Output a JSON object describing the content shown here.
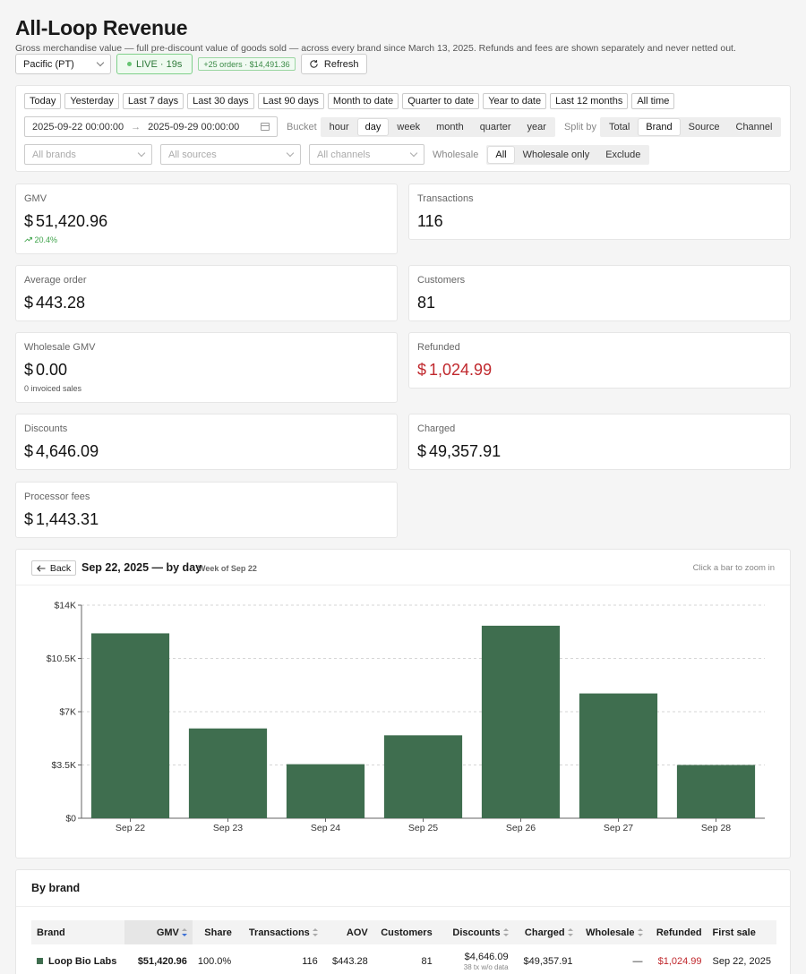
{
  "header": {
    "title": "All-Loop Revenue",
    "subtitle": "Gross merchandise value — full pre-discount value of goods sold — across every brand since March 13, 2025. Refunds and fees are shown separately and never netted out."
  },
  "toolbar": {
    "timezone": "Pacific (PT)",
    "live_label": "LIVE · 19s",
    "orders_badge": "+25 orders · $14,491.36",
    "refresh_label": "Refresh"
  },
  "filters": {
    "presets": [
      "Today",
      "Yesterday",
      "Last 7 days",
      "Last 30 days",
      "Last 90 days",
      "Month to date",
      "Quarter to date",
      "Year to date",
      "Last 12 months",
      "All time"
    ],
    "date_from": "2025-09-22 00:00:00",
    "date_arrow": "→",
    "date_to": "2025-09-29 00:00:00",
    "bucket_label": "Bucket",
    "buckets": [
      "hour",
      "day",
      "week",
      "month",
      "quarter",
      "year"
    ],
    "bucket_selected": "day",
    "split_label": "Split by",
    "splits": [
      "Total",
      "Brand",
      "Source",
      "Channel"
    ],
    "split_selected": "Brand",
    "brands_placeholder": "All brands",
    "sources_placeholder": "All sources",
    "channels_placeholder": "All channels",
    "wholesale_label": "Wholesale",
    "wholesale_options": [
      "All",
      "Wholesale only",
      "Exclude"
    ],
    "wholesale_selected": "All"
  },
  "stats": {
    "gmv": {
      "label": "GMV",
      "currency": "$",
      "value": "51,420.96",
      "delta": "20.4%"
    },
    "transactions": {
      "label": "Transactions",
      "value": "116"
    },
    "aov": {
      "label": "Average order",
      "currency": "$",
      "value": "443.28"
    },
    "customers": {
      "label": "Customers",
      "value": "81"
    },
    "wholesale": {
      "label": "Wholesale GMV",
      "currency": "$",
      "value": "0.00",
      "sub": "0 invoiced sales"
    },
    "refunded": {
      "label": "Refunded",
      "currency": "$",
      "value": "1,024.99"
    },
    "discounts": {
      "label": "Discounts",
      "currency": "$",
      "value": "4,646.09"
    },
    "charged": {
      "label": "Charged",
      "currency": "$",
      "value": "49,357.91"
    },
    "fees": {
      "label": "Processor fees",
      "currency": "$",
      "value": "1,443.31"
    }
  },
  "chart_panel": {
    "back_label": "Back",
    "title": "Sep 22, 2025 — by day",
    "week_label": "Week of Sep 22",
    "hint": "Click a bar to zoom in"
  },
  "chart_data": {
    "type": "bar",
    "categories": [
      "Sep 22",
      "Sep 23",
      "Sep 24",
      "Sep 25",
      "Sep 26",
      "Sep 27",
      "Sep 28"
    ],
    "values": [
      12150,
      5900,
      3550,
      5450,
      12650,
      8200,
      3500
    ],
    "ylim": [
      0,
      14000
    ],
    "yticks": [
      0,
      3500,
      7000,
      10500,
      14000
    ],
    "ytick_labels": [
      "$0",
      "$3.5K",
      "$7K",
      "$10.5K",
      "$14K"
    ],
    "grid": true,
    "bar_color": "#3f6e4f"
  },
  "brand_table": {
    "title": "By brand",
    "columns": [
      "Brand",
      "GMV",
      "Share",
      "Transactions",
      "AOV",
      "Customers",
      "Discounts",
      "Charged",
      "Wholesale",
      "Refunded",
      "First sale"
    ],
    "rows": [
      {
        "brand": "Loop Bio Labs",
        "gmv": "$51,420.96",
        "share": "100.0%",
        "transactions": "116",
        "aov": "$443.28",
        "customers": "81",
        "discounts": "$4,646.09",
        "discounts_note": "38 tx w/o data",
        "charged": "$49,357.91",
        "wholesale": "—",
        "refunded": "$1,024.99",
        "first_sale": "Sep 22, 2025"
      }
    ]
  }
}
